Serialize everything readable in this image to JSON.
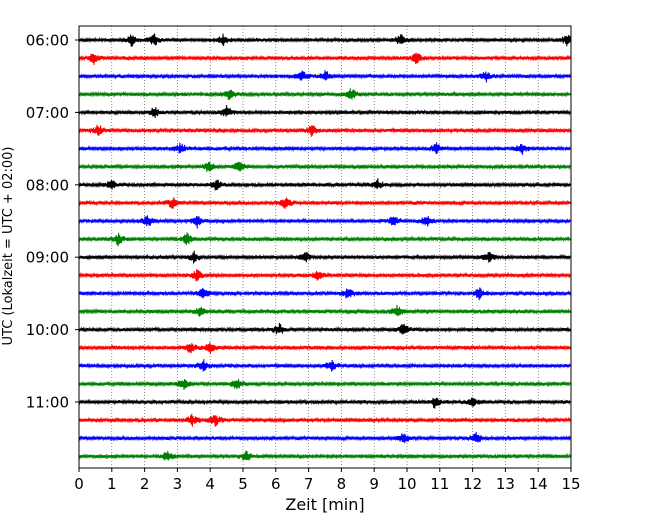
{
  "chart_data": {
    "type": "line",
    "title": "",
    "xlabel": "Zeit  [min]",
    "ylabel": "UTC (Lokalzeit = UTC + 02:00)",
    "xlim": [
      0,
      15
    ],
    "x_ticks": [
      "0",
      "1",
      "2",
      "3",
      "4",
      "5",
      "6",
      "7",
      "8",
      "9",
      "10",
      "11",
      "12",
      "13",
      "14",
      "15"
    ],
    "y_ticks": [
      "06:00",
      "07:00",
      "08:00",
      "09:00",
      "10:00",
      "11:00"
    ],
    "grid": "vertical dotted at each minute",
    "trace_interval_minutes": 15,
    "trace_colors": [
      "#000000",
      "#ff0000",
      "#0000ff",
      "#008000"
    ],
    "series": [
      {
        "start": "06:00",
        "color": "#000000",
        "events": [
          1.6,
          2.3,
          4.4,
          9.8,
          14.9
        ]
      },
      {
        "start": "06:15",
        "color": "#ff0000",
        "events": [
          0.45,
          10.3
        ]
      },
      {
        "start": "06:30",
        "color": "#0000ff",
        "events": [
          6.8,
          7.5,
          12.4
        ]
      },
      {
        "start": "06:45",
        "color": "#008000",
        "events": [
          4.6,
          8.3
        ]
      },
      {
        "start": "07:00",
        "color": "#000000",
        "events": [
          4.5,
          2.3
        ]
      },
      {
        "start": "07:15",
        "color": "#ff0000",
        "events": [
          0.6,
          7.1
        ]
      },
      {
        "start": "07:30",
        "color": "#0000ff",
        "events": [
          3.1,
          10.9,
          13.5
        ]
      },
      {
        "start": "07:45",
        "color": "#008000",
        "events": [
          3.95,
          4.9
        ]
      },
      {
        "start": "08:00",
        "color": "#000000",
        "events": [
          1.0,
          4.2,
          9.1
        ]
      },
      {
        "start": "08:15",
        "color": "#ff0000",
        "events": [
          2.85,
          6.3
        ]
      },
      {
        "start": "08:30",
        "color": "#0000ff",
        "events": [
          2.1,
          3.6,
          9.6,
          10.6
        ]
      },
      {
        "start": "08:45",
        "color": "#008000",
        "events": [
          1.2,
          3.3
        ]
      },
      {
        "start": "09:00",
        "color": "#000000",
        "events": [
          3.5,
          6.9,
          12.5
        ]
      },
      {
        "start": "09:15",
        "color": "#ff0000",
        "events": [
          3.6,
          7.3
        ]
      },
      {
        "start": "09:30",
        "color": "#0000ff",
        "events": [
          3.8,
          8.2,
          12.2
        ]
      },
      {
        "start": "09:45",
        "color": "#008000",
        "events": [
          3.7,
          9.7
        ]
      },
      {
        "start": "10:00",
        "color": "#000000",
        "events": [
          6.1,
          9.9
        ]
      },
      {
        "start": "10:15",
        "color": "#ff0000",
        "events": [
          3.4,
          4.0
        ]
      },
      {
        "start": "10:30",
        "color": "#0000ff",
        "events": [
          3.8,
          7.7
        ]
      },
      {
        "start": "10:45",
        "color": "#008000",
        "events": [
          3.2,
          4.8
        ]
      },
      {
        "start": "11:00",
        "color": "#000000",
        "events": [
          10.85,
          12.0
        ]
      },
      {
        "start": "11:15",
        "color": "#ff0000",
        "events": [
          3.45,
          4.15
        ]
      },
      {
        "start": "11:30",
        "color": "#0000ff",
        "events": [
          9.9,
          12.1
        ]
      },
      {
        "start": "11:45",
        "color": "#008000",
        "events": [
          2.7,
          5.1
        ]
      }
    ]
  }
}
